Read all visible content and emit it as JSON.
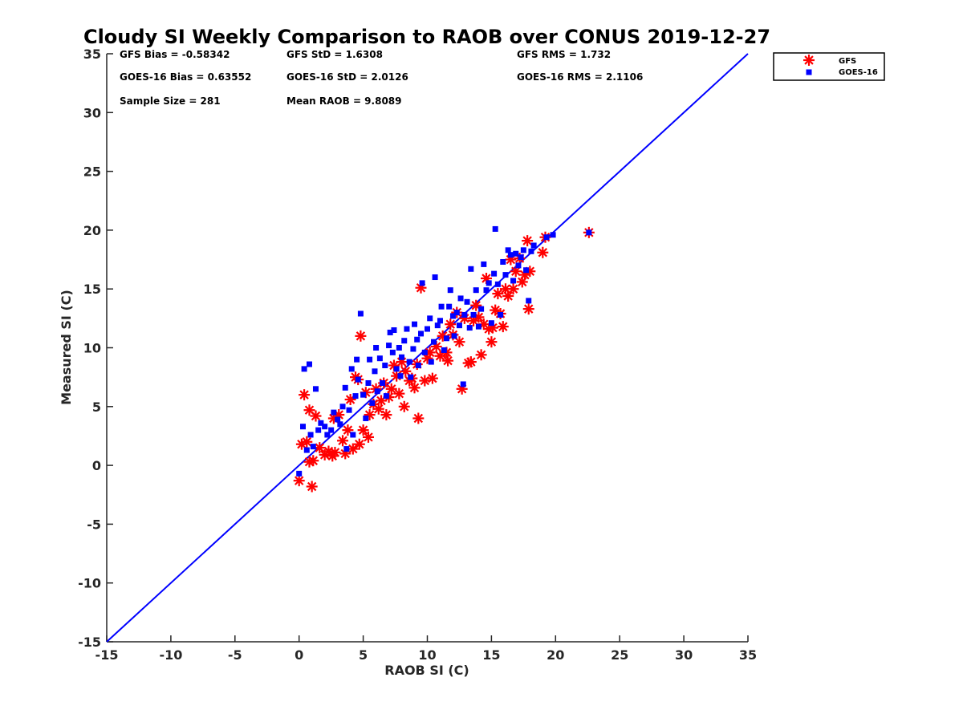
{
  "chart_data": {
    "type": "scatter",
    "title": "Cloudy SI Weekly Comparison to RAOB over CONUS 2019-12-27",
    "xlabel": "RAOB SI (C)",
    "ylabel": "Measured SI (C)",
    "xlim": [
      -15,
      35
    ],
    "ylim": [
      -15,
      35
    ],
    "xticks": [
      "-15",
      "-10",
      "-5",
      "0",
      "5",
      "10",
      "15",
      "20",
      "25",
      "30",
      "35"
    ],
    "yticks": [
      "-15",
      "-10",
      "-5",
      "0",
      "5",
      "10",
      "15",
      "20",
      "25",
      "30",
      "35"
    ],
    "grid": false,
    "legend_position": "top-right, outside plot area",
    "one_to_one_line": {
      "from": [
        -15,
        -15
      ],
      "to": [
        35,
        35
      ],
      "color": "#0000ff"
    },
    "stats": {
      "gfs_bias": "GFS Bias = -0.58342",
      "gfs_std": "GFS StD = 1.6308",
      "gfs_rms": "GFS RMS = 1.732",
      "goes_bias": "GOES-16 Bias = 0.63552",
      "goes_std": "GOES-16 StD = 2.0126",
      "goes_rms": "GOES-16 RMS = 2.1106",
      "sample_size": "Sample Size = 281",
      "mean_raob": "Mean RAOB = 9.8089"
    },
    "series": [
      {
        "name": "GFS",
        "marker": "asterisk",
        "color": "#ff0000",
        "points": [
          [
            0.0,
            -1.3
          ],
          [
            0.2,
            1.8
          ],
          [
            0.4,
            6.0
          ],
          [
            0.6,
            2.0
          ],
          [
            0.8,
            4.7
          ],
          [
            1.0,
            -1.8
          ],
          [
            0.8,
            0.3
          ],
          [
            1.1,
            0.4
          ],
          [
            1.3,
            4.2
          ],
          [
            1.6,
            1.5
          ],
          [
            2.0,
            0.9
          ],
          [
            2.3,
            1.2
          ],
          [
            2.6,
            0.8
          ],
          [
            2.8,
            1.1
          ],
          [
            2.7,
            4.0
          ],
          [
            3.1,
            4.3
          ],
          [
            3.4,
            2.1
          ],
          [
            3.6,
            1.0
          ],
          [
            3.8,
            3.0
          ],
          [
            4.0,
            5.6
          ],
          [
            4.2,
            1.4
          ],
          [
            4.4,
            7.5
          ],
          [
            4.6,
            7.3
          ],
          [
            4.7,
            1.8
          ],
          [
            4.8,
            11.0
          ],
          [
            5.0,
            3.0
          ],
          [
            5.2,
            6.2
          ],
          [
            5.4,
            2.4
          ],
          [
            5.5,
            4.3
          ],
          [
            5.8,
            5.2
          ],
          [
            6.0,
            6.5
          ],
          [
            6.2,
            4.8
          ],
          [
            6.4,
            5.5
          ],
          [
            6.6,
            7.0
          ],
          [
            6.8,
            4.3
          ],
          [
            7.0,
            5.8
          ],
          [
            7.2,
            6.5
          ],
          [
            7.4,
            8.5
          ],
          [
            7.6,
            7.6
          ],
          [
            7.8,
            6.1
          ],
          [
            8.0,
            8.8
          ],
          [
            8.2,
            5.0
          ],
          [
            8.3,
            8.0
          ],
          [
            8.6,
            7.2
          ],
          [
            8.8,
            7.4
          ],
          [
            9.0,
            6.6
          ],
          [
            9.2,
            8.6
          ],
          [
            9.3,
            4.0
          ],
          [
            9.5,
            15.1
          ],
          [
            9.8,
            7.2
          ],
          [
            10.0,
            9.1
          ],
          [
            10.2,
            9.6
          ],
          [
            10.4,
            7.4
          ],
          [
            10.7,
            10.1
          ],
          [
            11.0,
            9.3
          ],
          [
            11.2,
            11.0
          ],
          [
            11.5,
            9.6
          ],
          [
            11.6,
            8.9
          ],
          [
            11.8,
            12.0
          ],
          [
            12.0,
            11.1
          ],
          [
            12.3,
            13.0
          ],
          [
            12.5,
            10.5
          ],
          [
            12.7,
            6.5
          ],
          [
            12.9,
            12.5
          ],
          [
            13.2,
            8.7
          ],
          [
            13.4,
            8.8
          ],
          [
            13.6,
            12.3
          ],
          [
            13.8,
            13.6
          ],
          [
            14.0,
            12.6
          ],
          [
            14.2,
            9.4
          ],
          [
            14.4,
            12.0
          ],
          [
            14.6,
            15.9
          ],
          [
            14.8,
            11.6
          ],
          [
            15.0,
            10.5
          ],
          [
            15.1,
            11.7
          ],
          [
            15.3,
            13.2
          ],
          [
            15.5,
            14.6
          ],
          [
            15.7,
            12.9
          ],
          [
            15.9,
            11.8
          ],
          [
            16.1,
            15.0
          ],
          [
            16.3,
            14.4
          ],
          [
            16.5,
            17.5
          ],
          [
            16.7,
            15.0
          ],
          [
            16.9,
            16.5
          ],
          [
            17.2,
            17.6
          ],
          [
            17.4,
            15.6
          ],
          [
            17.6,
            16.2
          ],
          [
            17.8,
            19.1
          ],
          [
            17.9,
            13.3
          ],
          [
            18.0,
            16.5
          ],
          [
            19.0,
            18.1
          ],
          [
            19.2,
            19.4
          ],
          [
            22.6,
            19.8
          ]
        ]
      },
      {
        "name": "GOES-16",
        "marker": "square",
        "color": "#0000ff",
        "points": [
          [
            0.0,
            -0.7
          ],
          [
            0.3,
            3.3
          ],
          [
            0.4,
            8.2
          ],
          [
            0.6,
            1.3
          ],
          [
            0.8,
            8.6
          ],
          [
            0.9,
            2.6
          ],
          [
            1.1,
            1.6
          ],
          [
            1.3,
            6.5
          ],
          [
            1.5,
            3.0
          ],
          [
            1.7,
            3.6
          ],
          [
            2.0,
            3.3
          ],
          [
            2.2,
            2.6
          ],
          [
            2.5,
            3.0
          ],
          [
            2.7,
            4.5
          ],
          [
            3.0,
            3.9
          ],
          [
            3.2,
            3.5
          ],
          [
            3.4,
            5.0
          ],
          [
            3.6,
            6.6
          ],
          [
            3.7,
            1.4
          ],
          [
            3.9,
            4.7
          ],
          [
            4.1,
            8.2
          ],
          [
            4.2,
            2.6
          ],
          [
            4.4,
            5.9
          ],
          [
            4.5,
            9.0
          ],
          [
            4.6,
            7.3
          ],
          [
            4.8,
            12.9
          ],
          [
            5.0,
            6.0
          ],
          [
            5.2,
            4.0
          ],
          [
            5.4,
            7.0
          ],
          [
            5.5,
            9.0
          ],
          [
            5.7,
            5.3
          ],
          [
            5.9,
            8.0
          ],
          [
            6.0,
            10.0
          ],
          [
            6.1,
            6.3
          ],
          [
            6.3,
            9.1
          ],
          [
            6.5,
            7.0
          ],
          [
            6.7,
            8.5
          ],
          [
            6.8,
            5.9
          ],
          [
            7.0,
            10.2
          ],
          [
            7.1,
            11.3
          ],
          [
            7.3,
            9.6
          ],
          [
            7.4,
            11.5
          ],
          [
            7.6,
            8.2
          ],
          [
            7.8,
            10.0
          ],
          [
            7.9,
            7.6
          ],
          [
            8.0,
            9.2
          ],
          [
            8.2,
            10.6
          ],
          [
            8.4,
            11.6
          ],
          [
            8.6,
            8.8
          ],
          [
            8.7,
            7.5
          ],
          [
            8.9,
            9.9
          ],
          [
            9.0,
            12.0
          ],
          [
            9.2,
            10.7
          ],
          [
            9.3,
            8.5
          ],
          [
            9.5,
            11.2
          ],
          [
            9.6,
            15.5
          ],
          [
            9.8,
            9.6
          ],
          [
            10.0,
            11.6
          ],
          [
            10.2,
            12.5
          ],
          [
            10.3,
            8.8
          ],
          [
            10.5,
            10.5
          ],
          [
            10.6,
            16.0
          ],
          [
            10.8,
            11.9
          ],
          [
            11.0,
            12.3
          ],
          [
            11.1,
            13.5
          ],
          [
            11.3,
            9.8
          ],
          [
            11.5,
            10.8
          ],
          [
            11.7,
            13.5
          ],
          [
            11.8,
            14.9
          ],
          [
            12.0,
            12.7
          ],
          [
            12.1,
            11.0
          ],
          [
            12.3,
            13.0
          ],
          [
            12.5,
            11.9
          ],
          [
            12.6,
            14.2
          ],
          [
            12.8,
            6.9
          ],
          [
            12.9,
            12.8
          ],
          [
            13.1,
            13.9
          ],
          [
            13.3,
            11.7
          ],
          [
            13.4,
            16.7
          ],
          [
            13.6,
            12.8
          ],
          [
            13.8,
            14.9
          ],
          [
            14.0,
            11.8
          ],
          [
            14.2,
            13.3
          ],
          [
            14.4,
            17.1
          ],
          [
            14.6,
            14.9
          ],
          [
            14.8,
            15.5
          ],
          [
            15.0,
            12.1
          ],
          [
            15.2,
            16.3
          ],
          [
            15.3,
            20.1
          ],
          [
            15.5,
            15.4
          ],
          [
            15.7,
            12.8
          ],
          [
            15.9,
            17.3
          ],
          [
            16.1,
            16.2
          ],
          [
            16.3,
            18.3
          ],
          [
            16.5,
            17.9
          ],
          [
            16.7,
            15.7
          ],
          [
            16.9,
            18.0
          ],
          [
            17.1,
            17.0
          ],
          [
            17.3,
            17.7
          ],
          [
            17.5,
            18.3
          ],
          [
            17.7,
            16.6
          ],
          [
            17.9,
            14.0
          ],
          [
            18.1,
            18.2
          ],
          [
            18.3,
            18.7
          ],
          [
            19.3,
            19.4
          ],
          [
            19.8,
            19.6
          ],
          [
            22.6,
            19.8
          ]
        ]
      }
    ]
  }
}
